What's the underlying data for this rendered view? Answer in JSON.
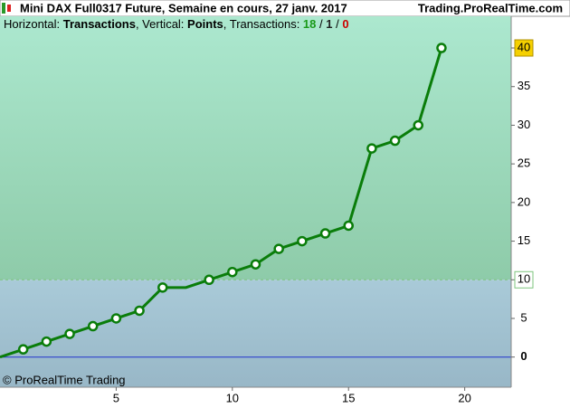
{
  "chart_data": {
    "type": "line",
    "title": "Mini DAX Full0317 Future, Semaine en cours, 27 janv. 2017",
    "source": "Trading.ProRealTime.com",
    "subtitle": [
      {
        "text": "Horizontal: ",
        "bold": false,
        "color": "#000000"
      },
      {
        "text": "Transactions",
        "bold": true,
        "color": "#000000"
      },
      {
        "text": ", Vertical: ",
        "bold": false,
        "color": "#000000"
      },
      {
        "text": "Points",
        "bold": true,
        "color": "#000000"
      },
      {
        "text": ", Transactions: ",
        "bold": false,
        "color": "#000000"
      },
      {
        "text": "18",
        "bold": true,
        "color": "#1a9a1a"
      },
      {
        "text": " / ",
        "bold": false,
        "color": "#000000"
      },
      {
        "text": "1",
        "bold": true,
        "color": "#222222"
      },
      {
        "text": " / ",
        "bold": false,
        "color": "#000000"
      },
      {
        "text": "0",
        "bold": true,
        "color": "#cc0000"
      }
    ],
    "copyright": "© ProRealTime Trading",
    "x": [
      0,
      1,
      2,
      3,
      4,
      5,
      6,
      7,
      8,
      9,
      10,
      11,
      12,
      13,
      14,
      15,
      16,
      17,
      18,
      19
    ],
    "values": [
      0,
      1,
      2,
      3,
      4,
      5,
      6,
      9,
      9,
      10,
      11,
      12,
      14,
      15,
      16,
      17,
      27,
      28,
      30,
      40
    ],
    "color": "#0a7d0a",
    "xlim": [
      0,
      22
    ],
    "ylim": [
      -3.9,
      44.1
    ],
    "xticks": [
      5,
      10,
      15,
      20
    ],
    "yticks": [
      0,
      5,
      10,
      15,
      20,
      25,
      30,
      35,
      40
    ],
    "threshold": 10
  }
}
